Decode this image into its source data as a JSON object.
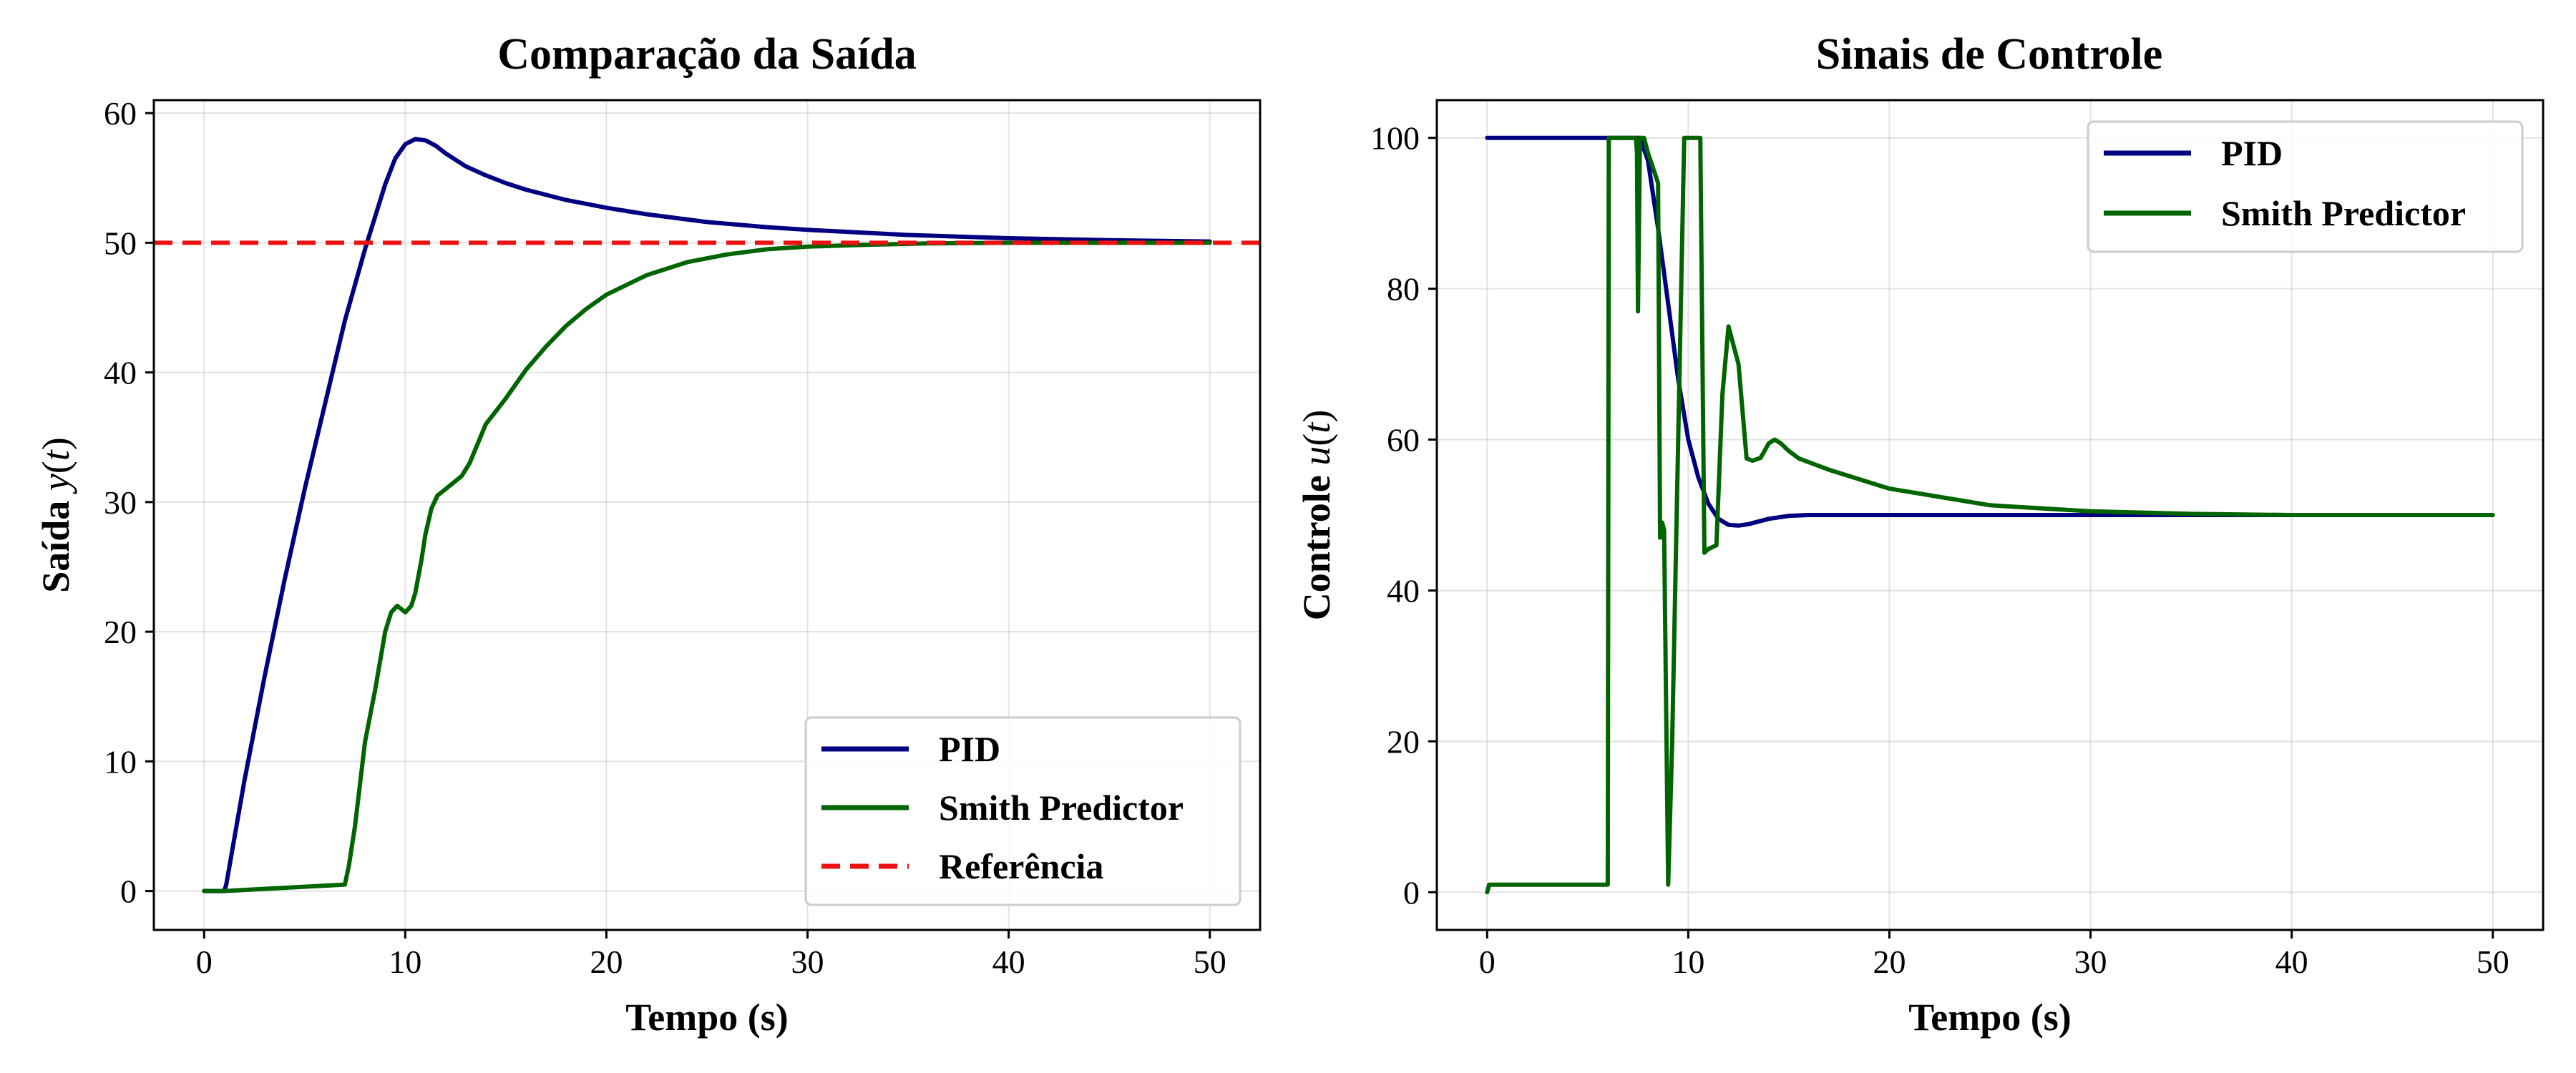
{
  "chart_data": [
    {
      "type": "line",
      "title": "Comparação da Saída",
      "xlabel": "Tempo (s)",
      "ylabel": "Saída y(t)",
      "ylabel_parts": {
        "text": "Saída ",
        "math": "y",
        "paren_open": "(",
        "math_arg": "t",
        "paren_close": ")"
      },
      "xlim": [
        -2.5,
        52.5
      ],
      "ylim": [
        -3,
        61
      ],
      "xticks": [
        0,
        10,
        20,
        30,
        40,
        50
      ],
      "yticks": [
        0,
        10,
        20,
        30,
        40,
        50,
        60
      ],
      "grid": true,
      "legend_position": "lower-right",
      "series": [
        {
          "name": "PID",
          "color": "#000080",
          "style": "solid",
          "x": [
            0,
            1,
            1.1,
            2,
            3,
            4,
            5,
            6,
            7,
            8,
            9,
            9.5,
            10,
            10.5,
            11,
            11.5,
            12,
            13,
            14,
            15,
            16,
            18,
            20,
            22,
            25,
            28,
            30,
            35,
            40,
            45,
            50
          ],
          "y": [
            0,
            0,
            0.5,
            8.5,
            16.5,
            24,
            31,
            37.5,
            44,
            49.5,
            54.5,
            56.5,
            57.6,
            58,
            57.9,
            57.5,
            56.9,
            55.9,
            55.2,
            54.6,
            54.1,
            53.3,
            52.7,
            52.2,
            51.6,
            51.2,
            51.0,
            50.6,
            50.35,
            50.2,
            50.1
          ]
        },
        {
          "name": "Smith Predictor",
          "color": "#006400",
          "style": "solid",
          "x": [
            0,
            1,
            7,
            7.2,
            7.5,
            8,
            8.5,
            9,
            9.3,
            9.6,
            10,
            10.3,
            10.5,
            10.8,
            11,
            11.3,
            11.6,
            12,
            12.4,
            12.8,
            13.2,
            13.6,
            14,
            14.5,
            15,
            16,
            17,
            18,
            19,
            20,
            22,
            24,
            26,
            28,
            30,
            33,
            36,
            40,
            45,
            50
          ],
          "y": [
            0,
            0,
            0.5,
            2,
            5,
            11.5,
            15.5,
            20,
            21.5,
            22,
            21.5,
            22,
            23,
            25.5,
            27.5,
            29.5,
            30.5,
            31,
            31.5,
            32,
            33,
            34.5,
            36,
            37,
            38,
            40.2,
            42,
            43.6,
            44.9,
            46,
            47.5,
            48.5,
            49.1,
            49.5,
            49.7,
            49.85,
            49.95,
            50.0,
            50.0,
            50.0
          ]
        },
        {
          "name": "Referência",
          "color": "#ee1111",
          "style": "dashed",
          "x": [
            -2.5,
            52.5
          ],
          "y": [
            50,
            50
          ]
        }
      ]
    },
    {
      "type": "line",
      "title": "Sinais de Controle",
      "xlabel": "Tempo (s)",
      "ylabel": "Controle u(t)",
      "ylabel_parts": {
        "text": "Controle ",
        "math": "u",
        "paren_open": "(",
        "math_arg": "t",
        "paren_close": ")"
      },
      "xlim": [
        -2.5,
        52.5
      ],
      "ylim": [
        -5,
        105
      ],
      "xticks": [
        0,
        10,
        20,
        30,
        40,
        50
      ],
      "yticks": [
        0,
        20,
        40,
        60,
        80,
        100
      ],
      "grid": true,
      "legend_position": "top-right",
      "series": [
        {
          "name": "PID",
          "color": "#000080",
          "style": "solid",
          "x": [
            0,
            7.6,
            8.0,
            8.5,
            9,
            9.5,
            10,
            10.5,
            11,
            11.5,
            12,
            12.5,
            13,
            14,
            15,
            16,
            18,
            20,
            30,
            40,
            50
          ],
          "y": [
            100,
            100,
            97,
            88,
            78,
            68,
            60,
            55,
            51.5,
            49.5,
            48.7,
            48.6,
            48.8,
            49.5,
            49.9,
            50.0,
            50.0,
            50.0,
            50.0,
            50.0,
            50.0
          ]
        },
        {
          "name": "Smith Predictor",
          "color": "#006400",
          "style": "solid",
          "x": [
            0,
            0.1,
            0.2,
            6,
            6.05,
            7.4,
            7.45,
            7.5,
            7.6,
            7.7,
            7.8,
            8.0,
            8.5,
            8.6,
            8.7,
            8.8,
            9.0,
            9.2,
            9.5,
            9.8,
            10.6,
            10.8,
            11.0,
            11.4,
            11.7,
            12.0,
            12.5,
            12.9,
            13.2,
            13.6,
            14.0,
            14.3,
            14.6,
            15.0,
            15.5,
            17,
            20,
            25,
            30,
            35,
            40,
            50
          ],
          "y": [
            0,
            1,
            1,
            1,
            100,
            100,
            98,
            77,
            100,
            100,
            100,
            98,
            94,
            47,
            49,
            48,
            1,
            20,
            60,
            100,
            100,
            45,
            45.5,
            46,
            66,
            75,
            70,
            57.5,
            57.2,
            57.6,
            59.5,
            60,
            59.5,
            58.5,
            57.5,
            56,
            53.5,
            51.3,
            50.5,
            50.15,
            50.0,
            50.0
          ]
        }
      ]
    }
  ]
}
